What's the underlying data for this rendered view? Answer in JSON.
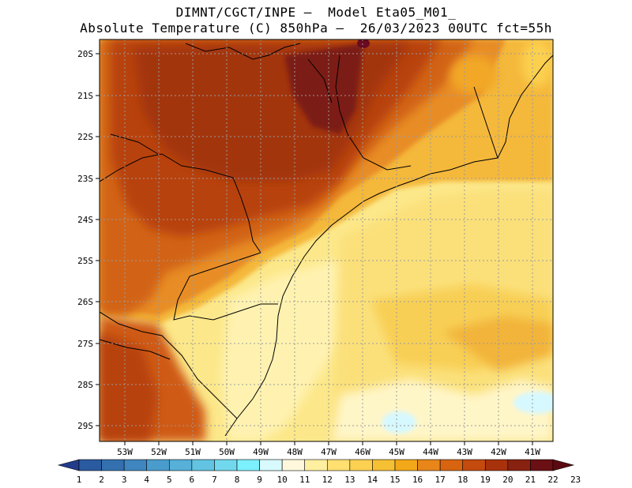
{
  "title": {
    "line1": "DIMNT/CGCT/INPE –  Model Eta05_M01_",
    "line2": "Absolute Temperature (C) 850hPa –  26/03/2023 00UTC fct=55h"
  },
  "map": {
    "lat_labels": [
      "20S",
      "21S",
      "22S",
      "23S",
      "24S",
      "25S",
      "26S",
      "27S",
      "28S",
      "29S"
    ],
    "lon_labels": [
      "53W",
      "52W",
      "51W",
      "50W",
      "49W",
      "48W",
      "47W",
      "46W",
      "45W",
      "44W",
      "43W",
      "42W",
      "41W"
    ],
    "lat_range": [
      -29.5,
      -19.75
    ],
    "lon_range": [
      -53.75,
      -40.5
    ]
  },
  "colorbar": {
    "labels": [
      "1",
      "2",
      "3",
      "4",
      "5",
      "6",
      "7",
      "8",
      "9",
      "10",
      "11",
      "12",
      "13",
      "14",
      "15",
      "16",
      "17",
      "18",
      "19",
      "20",
      "21",
      "22",
      "23"
    ],
    "colors": [
      "#223c8c",
      "#2a5aa0",
      "#3470b0",
      "#3f86c0",
      "#4a9ccc",
      "#56b0d8",
      "#62c4e2",
      "#72d8ee",
      "#7cf0ff",
      "#d8faff",
      "#fff8dc",
      "#fff0a0",
      "#ffe070",
      "#fcd050",
      "#f6c034",
      "#f2a818",
      "#e8861a",
      "#d86410",
      "#c44a0e",
      "#a8320c",
      "#882210",
      "#6a1014",
      "#5a0a10"
    ]
  }
}
